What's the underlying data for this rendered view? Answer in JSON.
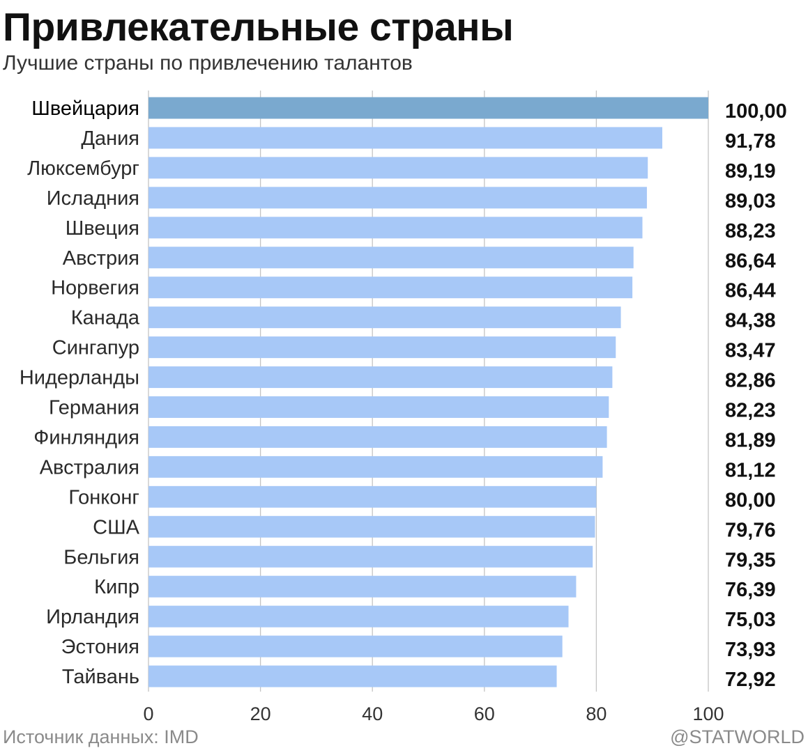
{
  "header": {
    "title": "Привлекательные страны",
    "subtitle": "Лучшие страны по привлечению талантов"
  },
  "footer": {
    "source": "Источник данных: IMD",
    "brand": "@STATWORLD"
  },
  "colors": {
    "highlight_bar": "#7aa9cf",
    "bar": "#a7c8f7",
    "grid": "#c4c4c4",
    "text": "#111111",
    "muted_text": "#8a8a8a"
  },
  "chart_data": {
    "type": "bar",
    "orientation": "horizontal",
    "title": "Привлекательные страны",
    "subtitle": "Лучшие страны по привлечению талантов",
    "categories": [
      "Швейцария",
      "Дания",
      "Люксембург",
      "Исладния",
      "Швеция",
      "Австрия",
      "Норвегия",
      "Канада",
      "Сингапур",
      "Нидерланды",
      "Германия",
      "Финляндия",
      "Австралия",
      "Гонконг",
      "США",
      "Бельгия",
      "Кипр",
      "Ирландия",
      "Эстония",
      "Тайвань"
    ],
    "values": [
      100.0,
      91.78,
      89.19,
      89.03,
      88.23,
      86.64,
      86.44,
      84.38,
      83.47,
      82.86,
      82.23,
      81.89,
      81.12,
      80.0,
      79.76,
      79.35,
      76.39,
      75.03,
      73.93,
      72.92
    ],
    "value_labels": [
      "100,00",
      "91,78",
      "89,19",
      "89,03",
      "88,23",
      "86,64",
      "86,44",
      "84,38",
      "83,47",
      "82,86",
      "82,23",
      "81,89",
      "81,12",
      "80,00",
      "79,76",
      "79,35",
      "76,39",
      "75,03",
      "73,93",
      "72,92"
    ],
    "highlighted_category": "Швейцария",
    "xlim": [
      0,
      100
    ],
    "xticks": [
      0,
      20,
      40,
      60,
      80,
      100
    ],
    "grid": "vertical",
    "xlabel": "",
    "ylabel": ""
  }
}
